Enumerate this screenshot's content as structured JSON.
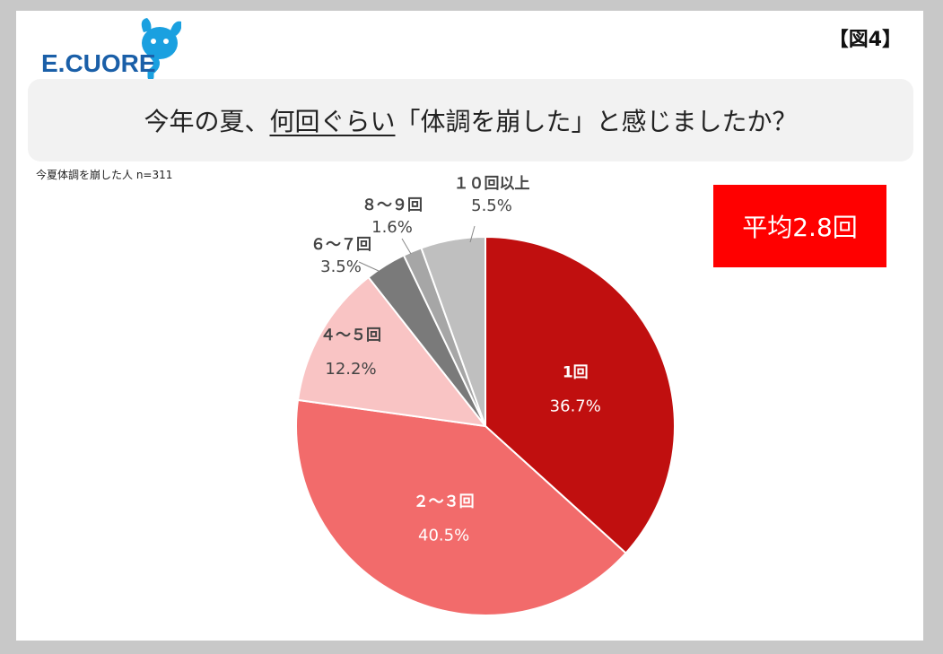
{
  "figure_label": "【図4】",
  "logo": {
    "text": "E.CUORE",
    "icon": "dog-question-mark-icon"
  },
  "title": {
    "before": "今年の夏、",
    "underlined": "何回ぐらい",
    "after": "「体調を崩した」と感じましたか？"
  },
  "sample_note": "今夏体調を崩した人 n=311",
  "average_badge": "平均2.8回",
  "chart_data": {
    "type": "pie",
    "start": "top",
    "direction": "clockwise",
    "slices": [
      {
        "label": "1回",
        "value": 36.7,
        "value_label": "36.7%",
        "color": "#c00f0f",
        "label_color": "#ffffff"
      },
      {
        "label": "２～３回",
        "value": 40.5,
        "value_label": "40.5%",
        "color": "#f26b6b",
        "label_color": "#ffffff"
      },
      {
        "label": "４～５回",
        "value": 12.2,
        "value_label": "12.2%",
        "color": "#f9c4c4",
        "label_color": "#444444"
      },
      {
        "label": "６～７回",
        "value": 3.5,
        "value_label": "3.5%",
        "color": "#7a7a7a",
        "label_color": "#444444"
      },
      {
        "label": "８～９回",
        "value": 1.6,
        "value_label": "1.6%",
        "color": "#a6a6a6",
        "label_color": "#444444"
      },
      {
        "label": "１０回以上",
        "value": 5.5,
        "value_label": "5.5%",
        "color": "#bfbfbf",
        "label_color": "#444444"
      }
    ]
  }
}
